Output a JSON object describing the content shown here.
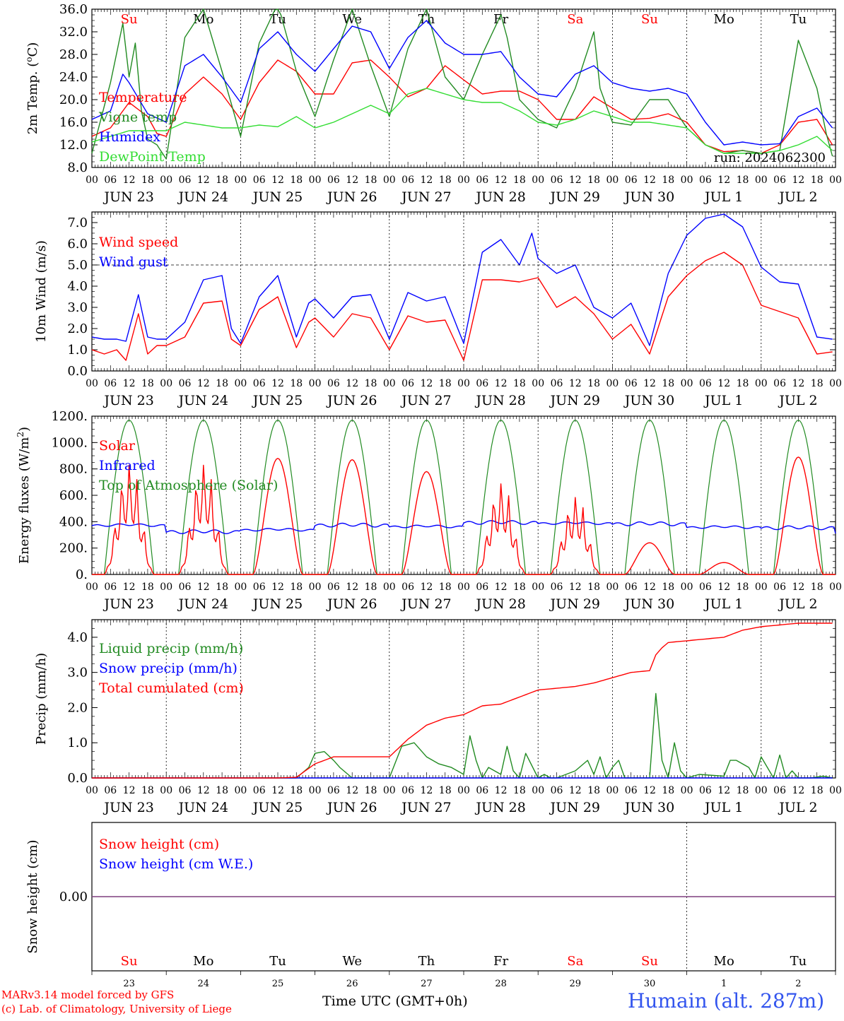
{
  "colors": {
    "red": "#ff0000",
    "dark_green": "#228b22",
    "blue": "#0000ff",
    "light_green": "#33dd33",
    "purple": "#7f3f7f",
    "station_blue": "#3355ee"
  },
  "day_abbr": [
    "Su",
    "Mo",
    "Tu",
    "We",
    "Th",
    "Fr",
    "Sa",
    "Su",
    "Mo",
    "Tu"
  ],
  "day_abbr_colors": [
    "#ff0000",
    "#000000",
    "#000000",
    "#000000",
    "#000000",
    "#000000",
    "#ff0000",
    "#ff0000",
    "#000000",
    "#000000"
  ],
  "date_labels": [
    "JUN 23",
    "JUN 24",
    "JUN 25",
    "JUN 26",
    "JUN 27",
    "JUN 28",
    "JUN 29",
    "JUN 30",
    "JUL  1",
    "JUL  2"
  ],
  "day_numbers": [
    "23",
    "24",
    "25",
    "26",
    "27",
    "28",
    "29",
    "30",
    "1",
    "2"
  ],
  "hour_ticks": [
    "00",
    "06",
    "12",
    "18"
  ],
  "footer": {
    "model": "MARv3.14 model forced by GFS",
    "lab": "(c) Lab. of Climatology, University of Liege",
    "time_label": "Time UTC (GMT+0h)",
    "station": "Humain (alt. 287m)"
  },
  "chart_data": [
    {
      "type": "line",
      "ylabel": "2m Temp. (oC)",
      "ylim": [
        8,
        36
      ],
      "yticks": [
        "8.0",
        "12.0",
        "16.0",
        "20.0",
        "24.0",
        "28.0",
        "32.0",
        "36.0"
      ],
      "run_label": "run: 2024062300",
      "x_unit": "hours since JUN 23 00 UTC",
      "series": [
        {
          "name": "Temperature",
          "color": "#ff0000",
          "x": [
            0,
            6,
            12,
            18,
            21,
            24,
            30,
            36,
            42,
            48,
            54,
            60,
            66,
            72,
            78,
            84,
            90,
            96,
            102,
            108,
            114,
            120,
            126,
            132,
            138,
            144,
            150,
            156,
            162,
            168,
            174,
            180,
            186,
            192,
            198,
            204,
            210,
            216,
            222,
            228,
            234,
            239
          ],
          "y": [
            13.5,
            15,
            19.5,
            17,
            14,
            13.5,
            21,
            24,
            21,
            16.5,
            23,
            27,
            25,
            21,
            21,
            26.5,
            27,
            24,
            20.5,
            22,
            26,
            23.5,
            21,
            21.5,
            21.5,
            20,
            16.5,
            16.5,
            20.5,
            18.5,
            16.5,
            16.7,
            17.5,
            16,
            12,
            10.8,
            11,
            10.5,
            12,
            16,
            16.5,
            12
          ]
        },
        {
          "name": "Vigne temp",
          "color": "#228b22",
          "x": [
            0,
            6,
            10,
            12,
            14,
            16,
            18,
            21,
            24,
            30,
            36,
            42,
            48,
            54,
            60,
            66,
            72,
            78,
            84,
            90,
            96,
            102,
            108,
            114,
            120,
            126,
            132,
            134,
            138,
            144,
            150,
            156,
            162,
            164,
            168,
            174,
            180,
            186,
            192,
            198,
            204,
            210,
            216,
            222,
            228,
            234,
            237,
            239
          ],
          "y": [
            10.5,
            23,
            33.5,
            24,
            30,
            18,
            13,
            12,
            9.5,
            31,
            36,
            25,
            13.5,
            30,
            37,
            25,
            17,
            27,
            36,
            26,
            17,
            29,
            36,
            24,
            20,
            28,
            35,
            31,
            20,
            16.5,
            15,
            22,
            32,
            22,
            16,
            15.5,
            20,
            20,
            15,
            12,
            10.5,
            11,
            10.5,
            11,
            30.5,
            22,
            14,
            10
          ]
        },
        {
          "name": "Humidex",
          "color": "#0000ff",
          "x": [
            0,
            6,
            10,
            12,
            18,
            24,
            30,
            36,
            42,
            48,
            54,
            60,
            66,
            72,
            78,
            84,
            90,
            96,
            102,
            108,
            114,
            120,
            126,
            132,
            138,
            144,
            150,
            156,
            162,
            168,
            174,
            180,
            186,
            192,
            198,
            204,
            210,
            216,
            222,
            228,
            234,
            239
          ],
          "y": [
            16.5,
            18,
            24.5,
            23,
            17.5,
            16,
            26,
            28,
            24,
            19.5,
            29,
            32,
            28,
            25,
            29,
            33,
            32,
            25.5,
            31,
            34,
            30,
            28,
            28,
            28.5,
            24,
            21,
            20.5,
            24.5,
            26,
            23,
            22,
            21.5,
            22,
            21,
            16,
            12,
            12.5,
            12,
            12.2,
            17,
            18.5,
            15
          ]
        },
        {
          "name": "DewPoint Temp",
          "color": "#33dd33",
          "x": [
            0,
            6,
            12,
            18,
            24,
            30,
            36,
            42,
            48,
            54,
            60,
            66,
            72,
            78,
            84,
            90,
            96,
            102,
            108,
            114,
            120,
            126,
            132,
            138,
            144,
            150,
            156,
            162,
            168,
            174,
            180,
            186,
            192,
            198,
            204,
            210,
            216,
            222,
            228,
            234,
            239
          ],
          "y": [
            12.5,
            13.5,
            14.5,
            14.5,
            14.5,
            16,
            15.5,
            15,
            15,
            15.5,
            15.2,
            17,
            15,
            16,
            17.5,
            19,
            17.5,
            21,
            22,
            21,
            20,
            19.5,
            19.5,
            18,
            16,
            15.5,
            16.5,
            18,
            17,
            16,
            16,
            15.5,
            15,
            12,
            10.5,
            10.5,
            10.5,
            11,
            12,
            13.5,
            11
          ]
        }
      ]
    },
    {
      "type": "line",
      "ylabel": "10m Wind (m/s)",
      "ylim": [
        0,
        7.5
      ],
      "yticks": [
        "0.0",
        "1.0",
        "2.0",
        "3.0",
        "4.0",
        "5.0",
        "6.0",
        "7.0"
      ],
      "reference_line": 5.0,
      "x_unit": "hours since JUN 23 00 UTC",
      "series": [
        {
          "name": "Wind speed",
          "color": "#ff0000",
          "x": [
            0,
            4,
            8,
            11,
            15,
            18,
            21,
            24,
            30,
            36,
            42,
            45,
            48,
            54,
            60,
            66,
            70,
            72,
            78,
            84,
            90,
            96,
            102,
            108,
            114,
            120,
            126,
            132,
            138,
            144,
            150,
            156,
            162,
            168,
            174,
            180,
            186,
            192,
            198,
            204,
            210,
            216,
            222,
            228,
            234,
            239
          ],
          "y": [
            1,
            0.8,
            1,
            0.5,
            2.7,
            0.8,
            1.2,
            1.2,
            1.6,
            3.2,
            3.3,
            1.5,
            1.2,
            2.9,
            3.5,
            1.1,
            2.3,
            2.5,
            1.6,
            2.7,
            2.5,
            1,
            2.6,
            2.3,
            2.4,
            0.5,
            4.3,
            4.3,
            4.2,
            4.4,
            3,
            3.5,
            2.7,
            1.5,
            2.2,
            0.8,
            3.5,
            4.5,
            5.2,
            5.6,
            5,
            3.1,
            2.8,
            2.5,
            0.8,
            0.9
          ]
        },
        {
          "name": "Wind gust",
          "color": "#0000ff",
          "x": [
            0,
            4,
            8,
            11,
            15,
            18,
            21,
            24,
            30,
            36,
            42,
            45,
            48,
            54,
            60,
            66,
            70,
            72,
            78,
            84,
            90,
            96,
            102,
            108,
            114,
            120,
            126,
            132,
            138,
            142,
            144,
            150,
            156,
            162,
            168,
            174,
            180,
            186,
            192,
            198,
            204,
            210,
            216,
            222,
            228,
            234,
            239
          ],
          "y": [
            1.6,
            1.5,
            1.5,
            1.4,
            3.6,
            1.6,
            1.5,
            1.5,
            2.3,
            4.3,
            4.5,
            2,
            1.3,
            3.5,
            4.5,
            1.6,
            3.2,
            3.4,
            2.5,
            3.5,
            3.6,
            1.5,
            3.7,
            3.3,
            3.5,
            1.3,
            5.6,
            6.2,
            5,
            6.5,
            5.3,
            4.6,
            5,
            3,
            2.5,
            3.2,
            1.2,
            4.6,
            6.4,
            7.2,
            7.4,
            6.8,
            4.9,
            4.2,
            4.1,
            1.6,
            1.5
          ]
        }
      ]
    },
    {
      "type": "line",
      "ylabel": "Energy fluxes (W/m2)",
      "ylim": [
        0,
        1200
      ],
      "yticks": [
        "0.",
        "200.",
        "400.",
        "600.",
        "800.",
        "1000.",
        "1200."
      ],
      "x_unit": "hours since JUN 23 00 UTC",
      "daylight_hours": [
        4,
        20
      ],
      "toa_peak": 1170,
      "solar_peaks": [
        880,
        880,
        880,
        870,
        780,
        730,
        620,
        240,
        90,
        890
      ],
      "infrared_levels": [
        370,
        320,
        335,
        370,
        360,
        390,
        385,
        380,
        355,
        350
      ],
      "series": [
        {
          "name": "Solar",
          "color": "#ff0000"
        },
        {
          "name": "Infrared",
          "color": "#0000ff"
        },
        {
          "name": "Top of Atmosphere (Solar)",
          "color": "#228b22"
        }
      ]
    },
    {
      "type": "line",
      "ylabel": "Precip (mm/h)",
      "ylim": [
        0,
        4.5
      ],
      "yticks": [
        "0.0",
        "1.0",
        "2.0",
        "3.0",
        "4.0"
      ],
      "x_unit": "hours since JUN 23 00 UTC",
      "series": [
        {
          "name": "Liquid precip (mm/h)",
          "color": "#228b22",
          "x": [
            0,
            66,
            70,
            72,
            75,
            78,
            80,
            84,
            96,
            100,
            104,
            108,
            112,
            116,
            120,
            122,
            124,
            126,
            128,
            132,
            134,
            136,
            138,
            140,
            144,
            146,
            148,
            150,
            156,
            160,
            162,
            164,
            166,
            168,
            170,
            172,
            180,
            182,
            184,
            186,
            188,
            190,
            192,
            196,
            204,
            206,
            208,
            212,
            214,
            216,
            220,
            222,
            224,
            226,
            228,
            232,
            236,
            239
          ],
          "y": [
            0,
            0,
            0.3,
            0.7,
            0.75,
            0.5,
            0.3,
            0,
            0,
            0.9,
            1,
            0.6,
            0.4,
            0.3,
            0.1,
            1.2,
            0.5,
            0,
            0.3,
            0.1,
            0.9,
            0.2,
            0,
            0.7,
            0,
            0.1,
            0,
            0,
            0.2,
            0.5,
            0.1,
            0.6,
            0,
            0.3,
            0.5,
            0,
            0,
            2.4,
            0.5,
            0,
            1,
            0.2,
            0,
            0.1,
            0.05,
            0.5,
            0.5,
            0.3,
            0,
            0.6,
            0,
            0.65,
            0,
            0.2,
            0,
            0,
            0.05,
            0
          ]
        },
        {
          "name": "Snow precip (mm/h)",
          "color": "#0000ff",
          "x": [
            0,
            239
          ],
          "y": [
            0,
            0
          ]
        },
        {
          "name": "Total cumulated (cm)",
          "color": "#ff0000",
          "x": [
            0,
            60,
            66,
            72,
            78,
            84,
            96,
            102,
            108,
            114,
            120,
            126,
            132,
            138,
            144,
            150,
            156,
            162,
            168,
            174,
            180,
            182,
            184,
            186,
            192,
            204,
            210,
            216,
            222,
            228,
            239
          ],
          "y": [
            0,
            0,
            0.02,
            0.4,
            0.6,
            0.6,
            0.6,
            1.1,
            1.5,
            1.7,
            1.8,
            2.05,
            2.1,
            2.3,
            2.5,
            2.55,
            2.6,
            2.7,
            2.85,
            3,
            3.05,
            3.5,
            3.7,
            3.85,
            3.9,
            4,
            4.2,
            4.3,
            4.35,
            4.4,
            4.4
          ]
        }
      ]
    },
    {
      "type": "line",
      "ylabel": "Snow height (cm)",
      "ylim": [
        -1,
        1
      ],
      "yticks": [
        "0.00"
      ],
      "x_unit": "hours since JUN 23 00 UTC",
      "series": [
        {
          "name": "Snow height (cm)",
          "color": "#ff0000",
          "x": [
            0,
            240
          ],
          "y": [
            0,
            0
          ]
        },
        {
          "name": "Snow height (cm W.E.)",
          "color": "#0000ff",
          "x": [
            0,
            240
          ],
          "y": [
            0,
            0
          ]
        }
      ]
    }
  ]
}
